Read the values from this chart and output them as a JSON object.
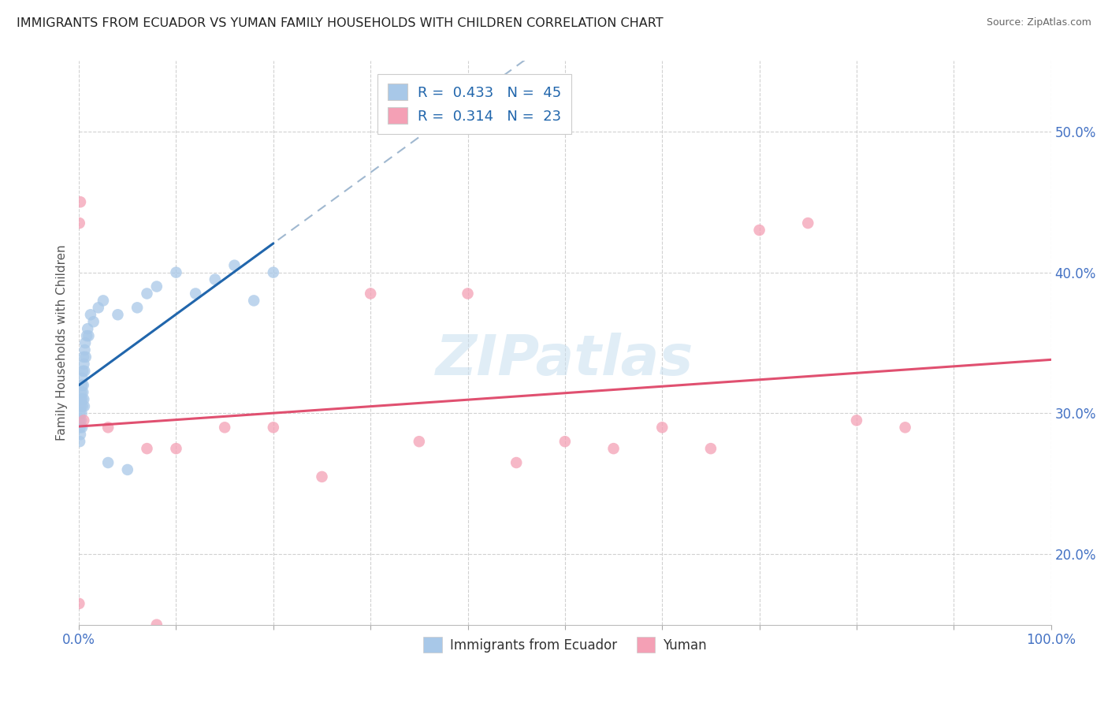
{
  "title": "IMMIGRANTS FROM ECUADOR VS YUMAN FAMILY HOUSEHOLDS WITH CHILDREN CORRELATION CHART",
  "source": "Source: ZipAtlas.com",
  "ylabel": "Family Households with Children",
  "legend_label1": "Immigrants from Ecuador",
  "legend_label2": "Yuman",
  "r1": 0.433,
  "n1": 45,
  "r2": 0.314,
  "n2": 23,
  "color1": "#a8c8e8",
  "color2": "#f4a0b5",
  "line_color1": "#2166ac",
  "line_color1_dashed": "#a0b8d0",
  "line_color2": "#e05070",
  "xlim": [
    0.0,
    100.0
  ],
  "ylim": [
    15.0,
    55.0
  ],
  "ytick_positions": [
    20.0,
    30.0,
    40.0,
    50.0
  ],
  "xtick_positions": [
    0.0,
    10.0,
    20.0,
    30.0,
    40.0,
    50.0,
    60.0,
    70.0,
    80.0,
    90.0,
    100.0
  ],
  "background_color": "#ffffff",
  "ecuador_x": [
    0.05,
    0.08,
    0.1,
    0.12,
    0.15,
    0.18,
    0.2,
    0.22,
    0.25,
    0.28,
    0.3,
    0.32,
    0.33,
    0.35,
    0.37,
    0.4,
    0.42,
    0.45,
    0.48,
    0.5,
    0.52,
    0.55,
    0.58,
    0.6,
    0.65,
    0.7,
    0.8,
    0.9,
    1.0,
    1.2,
    1.5,
    2.0,
    2.5,
    3.0,
    4.0,
    5.0,
    6.0,
    7.0,
    8.0,
    10.0,
    12.0,
    14.0,
    16.0,
    18.0,
    20.0
  ],
  "ecuador_y": [
    29.5,
    28.0,
    30.0,
    29.0,
    28.5,
    31.0,
    30.5,
    29.5,
    31.5,
    30.0,
    32.0,
    29.0,
    31.0,
    32.5,
    30.5,
    33.0,
    31.5,
    32.0,
    34.0,
    31.0,
    33.5,
    30.5,
    33.0,
    34.5,
    35.0,
    34.0,
    35.5,
    36.0,
    35.5,
    37.0,
    36.5,
    37.5,
    38.0,
    26.5,
    37.0,
    26.0,
    37.5,
    38.5,
    39.0,
    40.0,
    38.5,
    39.5,
    40.5,
    38.0,
    40.0
  ],
  "yuman_x": [
    0.02,
    0.05,
    0.15,
    0.5,
    3.0,
    7.0,
    8.0,
    10.0,
    15.0,
    20.0,
    25.0,
    30.0,
    35.0,
    40.0,
    45.0,
    50.0,
    55.0,
    60.0,
    65.0,
    70.0,
    75.0,
    80.0,
    85.0
  ],
  "yuman_y": [
    16.5,
    43.5,
    45.0,
    29.5,
    29.0,
    27.5,
    15.0,
    27.5,
    29.0,
    29.0,
    25.5,
    38.5,
    28.0,
    38.5,
    26.5,
    28.0,
    27.5,
    29.0,
    27.5,
    43.0,
    43.5,
    29.5,
    29.0
  ],
  "watermark": "ZIPatlas"
}
